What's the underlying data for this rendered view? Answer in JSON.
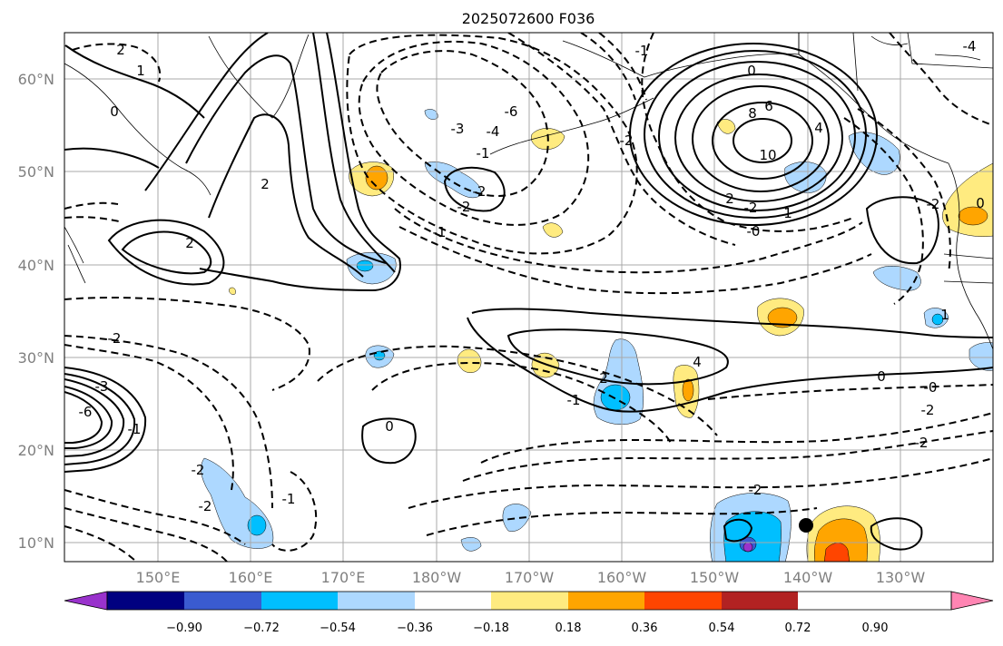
{
  "title": "2025072600 F036",
  "lat_labels": [
    "60°N",
    "50°N",
    "40°N",
    "30°N",
    "20°N",
    "10°N"
  ],
  "lon_labels": [
    "150°E",
    "160°E",
    "170°E",
    "180°W",
    "170°W",
    "160°W",
    "150°W",
    "140°W",
    "130°W"
  ],
  "colorbar": {
    "colors": [
      "#9932cc",
      "#000080",
      "#3a5bd0",
      "#00bfff",
      "#add8ff",
      "#ffffff",
      "#ffeb80",
      "#ffa500",
      "#ff4500",
      "#b22222",
      "#ff85b3"
    ],
    "labels": [
      "−0.90",
      "−0.72",
      "−0.54",
      "−0.36",
      "−0.18",
      "0.18",
      "0.36",
      "0.54",
      "0.72",
      "0.90"
    ]
  },
  "contour_labels": [
    "2",
    "1",
    "0",
    "-2",
    "-3",
    "-6",
    "2",
    "2",
    "-1",
    "-2",
    "-2",
    "-1",
    "-4",
    "-3",
    "-6",
    "-1",
    "-2",
    "10",
    "8",
    "6",
    "4",
    "2",
    "0",
    "-0",
    "-2",
    "2",
    "-1",
    "0",
    "1",
    "-1",
    "-2",
    "-1",
    "0",
    "-2",
    "0",
    "-0",
    "-2",
    "-2",
    "-4",
    "-2",
    "1",
    "-2",
    "4"
  ]
}
